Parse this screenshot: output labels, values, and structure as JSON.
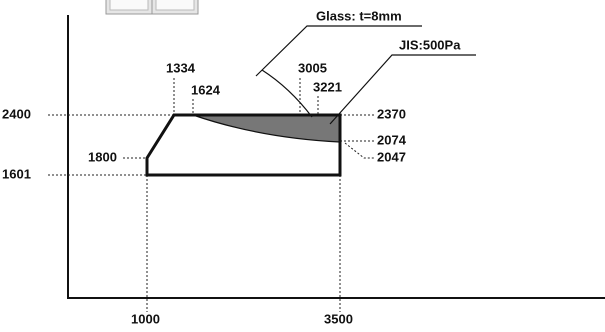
{
  "diagram": {
    "annotations": {
      "glass": "Glass: t=8mm",
      "pressure": "JIS:500Pa"
    },
    "height_labels": {
      "max": "2400",
      "min": "1601",
      "corner": "1800"
    },
    "width_labels": {
      "min": "1000",
      "max": "3500"
    },
    "top_labels": [
      "1334",
      "1624",
      "3005",
      "3221"
    ],
    "right_labels": [
      "2370",
      "2074",
      "2047"
    ]
  }
}
